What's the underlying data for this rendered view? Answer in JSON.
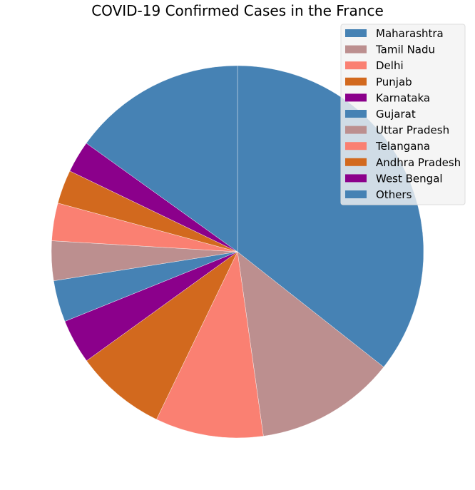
{
  "chart_data": {
    "type": "pie",
    "title": "COVID-19 Confirmed Cases in the France",
    "start_angle_deg": 90,
    "direction": "clockwise",
    "legend_position": "top-right",
    "slices": [
      {
        "label": "Maharashtra",
        "value": 42.5,
        "color": "#4682b4"
      },
      {
        "label": "Tamil Nadu",
        "value": 14.5,
        "color": "#bc8f8f"
      },
      {
        "label": "Delhi",
        "value": 11.2,
        "color": "#fa8072"
      },
      {
        "label": "Punjab",
        "value": 9.4,
        "color": "#d2691e"
      },
      {
        "label": "Karnataka",
        "value": 4.6,
        "color": "#8b008b"
      },
      {
        "label": "Gujarat",
        "value": 4.3,
        "color": "#4682b4"
      },
      {
        "label": "Uttar Pradesh",
        "value": 4.1,
        "color": "#bc8f8f"
      },
      {
        "label": "Telangana",
        "value": 3.9,
        "color": "#fa8072"
      },
      {
        "label": "Andhra Pradesh",
        "value": 3.5,
        "color": "#d2691e"
      },
      {
        "label": "West Bengal",
        "value": 3.3,
        "color": "#8b008b"
      },
      {
        "label": "Others",
        "value": 18.0,
        "color": "#4682b4"
      }
    ]
  }
}
